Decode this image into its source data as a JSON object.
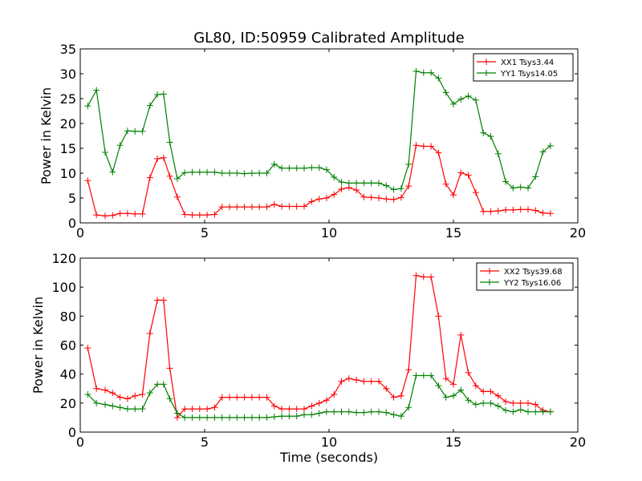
{
  "title": "GL80, ID:50959 Calibrated Amplitude",
  "chart_data": [
    {
      "type": "line",
      "title": "",
      "xlabel": "",
      "ylabel": "Power in Kelvin",
      "xlim": [
        0,
        20
      ],
      "ylim": [
        0,
        35
      ],
      "xticks": [
        "0",
        "5",
        "10",
        "15",
        "20"
      ],
      "yticks": [
        "0",
        "5",
        "10",
        "15",
        "20",
        "25",
        "30",
        "35"
      ],
      "grid": false,
      "legend_position": "top-right",
      "x": [
        0.3,
        0.65,
        1.0,
        1.3,
        1.6,
        1.9,
        2.2,
        2.5,
        2.8,
        3.1,
        3.35,
        3.6,
        3.9,
        4.2,
        4.5,
        4.8,
        5.1,
        5.4,
        5.7,
        6.0,
        6.3,
        6.6,
        6.9,
        7.2,
        7.5,
        7.8,
        8.1,
        8.4,
        8.7,
        9.0,
        9.3,
        9.6,
        9.9,
        10.2,
        10.5,
        10.8,
        11.1,
        11.4,
        11.7,
        12.0,
        12.3,
        12.6,
        12.9,
        13.2,
        13.5,
        13.8,
        14.1,
        14.4,
        14.7,
        15.0,
        15.3,
        15.6,
        15.9,
        16.2,
        16.5,
        16.8,
        17.1,
        17.4,
        17.7,
        18.0,
        18.3,
        18.6,
        18.9
      ],
      "series": [
        {
          "name": "XX1 Tsys3.44",
          "color": "#ff0000",
          "values": [
            8.5,
            1.6,
            1.4,
            1.5,
            1.9,
            1.9,
            1.8,
            1.8,
            9.1,
            12.9,
            13.1,
            9.4,
            5.2,
            1.7,
            1.6,
            1.6,
            1.6,
            1.7,
            3.2,
            3.2,
            3.2,
            3.2,
            3.2,
            3.2,
            3.2,
            3.7,
            3.3,
            3.3,
            3.3,
            3.3,
            4.3,
            4.8,
            5.0,
            5.7,
            6.8,
            7.1,
            6.6,
            5.2,
            5.1,
            5.0,
            4.8,
            4.7,
            5.1,
            7.4,
            15.6,
            15.4,
            15.4,
            14.1,
            7.8,
            5.6,
            10.1,
            9.6,
            6.1,
            2.3,
            2.3,
            2.4,
            2.6,
            2.6,
            2.7,
            2.7,
            2.5,
            2.0,
            1.9
          ]
        },
        {
          "name": "YY1 Tsys14.05",
          "color": "#008000",
          "values": [
            23.5,
            26.7,
            14.2,
            10.2,
            15.6,
            18.5,
            18.4,
            18.4,
            23.6,
            25.8,
            25.9,
            16.2,
            8.9,
            10.1,
            10.2,
            10.2,
            10.2,
            10.2,
            10.0,
            10.0,
            10.0,
            9.9,
            10.0,
            10.0,
            10.0,
            11.8,
            11.0,
            11.0,
            11.0,
            11.0,
            11.1,
            11.1,
            10.7,
            9.2,
            8.2,
            8.0,
            8.0,
            8.0,
            8.0,
            8.0,
            7.5,
            6.7,
            6.9,
            11.8,
            30.5,
            30.2,
            30.2,
            29.1,
            26.2,
            23.9,
            24.9,
            25.5,
            24.7,
            18.1,
            17.4,
            13.9,
            8.3,
            7.0,
            7.2,
            7.0,
            9.3,
            14.3,
            15.5
          ]
        }
      ]
    },
    {
      "type": "line",
      "title": "",
      "xlabel": "Time (seconds)",
      "ylabel": "Power in Kelvin",
      "xlim": [
        0,
        20
      ],
      "ylim": [
        0,
        120
      ],
      "xticks": [
        "0",
        "5",
        "10",
        "15",
        "20"
      ],
      "yticks": [
        "0",
        "20",
        "40",
        "60",
        "80",
        "100",
        "120"
      ],
      "grid": false,
      "legend_position": "top-right",
      "x": [
        0.3,
        0.65,
        1.0,
        1.3,
        1.6,
        1.9,
        2.2,
        2.5,
        2.8,
        3.1,
        3.35,
        3.6,
        3.9,
        4.2,
        4.5,
        4.8,
        5.1,
        5.4,
        5.7,
        6.0,
        6.3,
        6.6,
        6.9,
        7.2,
        7.5,
        7.8,
        8.1,
        8.4,
        8.7,
        9.0,
        9.3,
        9.6,
        9.9,
        10.2,
        10.5,
        10.8,
        11.1,
        11.4,
        11.7,
        12.0,
        12.3,
        12.6,
        12.9,
        13.2,
        13.5,
        13.8,
        14.1,
        14.4,
        14.7,
        15.0,
        15.3,
        15.6,
        15.9,
        16.2,
        16.5,
        16.8,
        17.1,
        17.4,
        17.7,
        18.0,
        18.3,
        18.6,
        18.9
      ],
      "series": [
        {
          "name": "XX2 Tsys39.68",
          "color": "#ff0000",
          "values": [
            58,
            30,
            29,
            27,
            24,
            23,
            25,
            26,
            68,
            91,
            91,
            44,
            10,
            16,
            16,
            16,
            16,
            17,
            24,
            24,
            24,
            24,
            24,
            24,
            24,
            18,
            16,
            16,
            16,
            16,
            18,
            20,
            22,
            26,
            35,
            37,
            36,
            35,
            35,
            35,
            30,
            24,
            25,
            43,
            108,
            107,
            107,
            80,
            37,
            33,
            67,
            41,
            32,
            28,
            28,
            25,
            21,
            20,
            20,
            20,
            19,
            15,
            14
          ]
        },
        {
          "name": "YY2 Tsys16.06",
          "color": "#008000",
          "values": [
            26,
            20,
            19,
            18,
            17,
            16,
            16,
            16,
            27,
            33,
            33,
            23,
            13,
            10,
            10,
            10,
            10,
            10,
            10,
            10,
            10,
            10,
            10,
            10,
            10,
            10.5,
            11,
            11,
            11,
            12,
            12,
            13,
            14,
            14,
            14,
            14,
            13.5,
            13.5,
            14,
            14,
            13.5,
            12,
            11,
            17,
            39,
            39,
            39,
            32,
            24,
            25,
            29,
            22,
            19,
            20,
            20,
            18,
            15,
            14,
            15.5,
            14,
            14,
            14,
            14
          ]
        }
      ]
    }
  ]
}
